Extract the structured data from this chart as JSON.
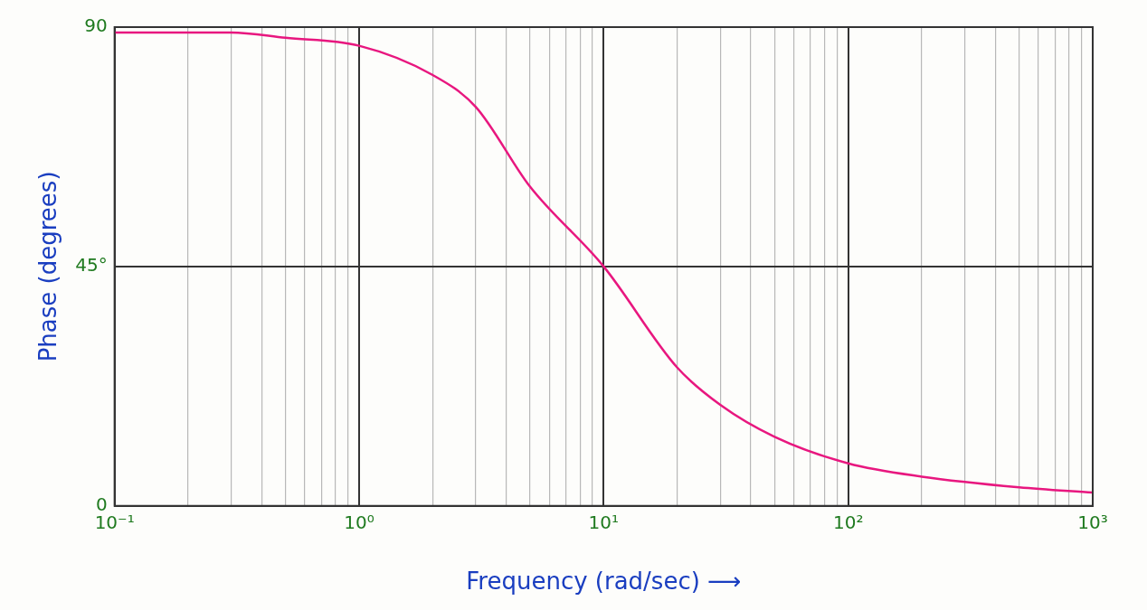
{
  "chart_data": {
    "type": "line",
    "xlabel": "Frequency (rad/sec) ⟶",
    "ylabel": "Phase (degrees)",
    "x": [
      0.1,
      0.2,
      0.3,
      0.5,
      1,
      2,
      3,
      5,
      10,
      20,
      30,
      50,
      100,
      200,
      500,
      1000
    ],
    "series": [
      {
        "color": "#e8177f",
        "values": [
          89,
          89,
          89,
          88,
          86.5,
          81,
          75,
          60,
          45,
          26,
          19,
          13,
          8,
          5.5,
          3.5,
          2.5
        ]
      }
    ],
    "log": "x",
    "xlim": [
      0.1,
      1000
    ],
    "ylim": [
      0,
      90
    ],
    "xticks": [
      {
        "value": 0.1,
        "label": "10⁻¹"
      },
      {
        "value": 0.2,
        "label": null
      },
      {
        "value": 0.3,
        "label": null
      },
      {
        "value": 0.4,
        "label": null
      },
      {
        "value": 0.5,
        "label": null
      },
      {
        "value": 0.6,
        "label": null
      },
      {
        "value": 0.7,
        "label": null
      },
      {
        "value": 0.8,
        "label": null
      },
      {
        "value": 0.9,
        "label": null
      },
      {
        "value": 1,
        "label": "10⁰"
      },
      {
        "value": 2,
        "label": null
      },
      {
        "value": 3,
        "label": null
      },
      {
        "value": 4,
        "label": null
      },
      {
        "value": 5,
        "label": null
      },
      {
        "value": 6,
        "label": null
      },
      {
        "value": 7,
        "label": null
      },
      {
        "value": 8,
        "label": null
      },
      {
        "value": 9,
        "label": null
      },
      {
        "value": 10,
        "label": "10¹"
      },
      {
        "value": 20,
        "label": null
      },
      {
        "value": 30,
        "label": null
      },
      {
        "value": 40,
        "label": null
      },
      {
        "value": 50,
        "label": null
      },
      {
        "value": 60,
        "label": null
      },
      {
        "value": 70,
        "label": null
      },
      {
        "value": 80,
        "label": null
      },
      {
        "value": 90,
        "label": null
      },
      {
        "value": 100,
        "label": "10²"
      },
      {
        "value": 200,
        "label": null
      },
      {
        "value": 300,
        "label": null
      },
      {
        "value": 400,
        "label": null
      },
      {
        "value": 500,
        "label": null
      },
      {
        "value": 600,
        "label": null
      },
      {
        "value": 700,
        "label": null
      },
      {
        "value": 800,
        "label": null
      },
      {
        "value": 900,
        "label": null
      },
      {
        "value": 1000,
        "label": "10³"
      }
    ],
    "yticks": [
      0,
      {
        "value": 45,
        "label": "45°"
      },
      90
    ],
    "grid": true,
    "marker": "none",
    "line_style": "solid",
    "legend": false
  }
}
